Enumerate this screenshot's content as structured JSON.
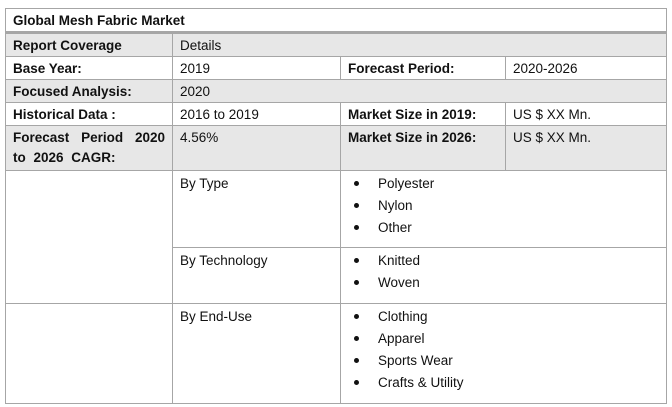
{
  "title": "Global Mesh Fabric Market",
  "header": {
    "col1": "Report Coverage",
    "col2": "Details"
  },
  "rows": {
    "base_year": {
      "label": "Base Year:",
      "value": "2019",
      "label2": "Forecast Period:",
      "value2": "2020-2026"
    },
    "focused": {
      "label": "Focused Analysis:",
      "value": "2020"
    },
    "historical": {
      "label": "Historical Data :",
      "value": "2016 to 2019",
      "label2": "Market Size in 2019:",
      "value2": "US $ XX Mn."
    },
    "forecast": {
      "label": "Forecast Period 2020 to 2026 CAGR:",
      "value": "4.56%",
      "label2": "Market Size in 2026:",
      "value2": "US $ XX  Mn."
    }
  },
  "segments": [
    {
      "label": "By Type",
      "items": [
        "Polyester",
        "Nylon",
        "Other"
      ]
    },
    {
      "label": "By Technology",
      "items": [
        "Knitted",
        "Woven"
      ]
    },
    {
      "label": "By End-Use",
      "items": [
        "Clothing",
        "Apparel",
        "Sports Wear",
        "Crafts & Utility"
      ]
    }
  ]
}
